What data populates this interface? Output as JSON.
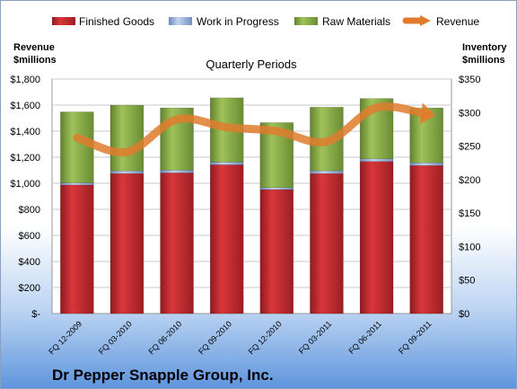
{
  "chart_data": {
    "type": "bar",
    "title": "Quarterly Periods",
    "company": "Dr Pepper Snapple Group, Inc.",
    "left_axis": {
      "label_line1": "Revenue",
      "label_line2": "$millions",
      "range": [
        0,
        1800
      ],
      "ticks": [
        "$-",
        "$200",
        "$400",
        "$600",
        "$800",
        "$1,000",
        "$1,200",
        "$1,400",
        "$1,600",
        "$1,800"
      ]
    },
    "right_axis": {
      "label_line1": "Inventory",
      "label_line2": "$millions",
      "range": [
        0,
        350
      ],
      "ticks": [
        "$0",
        "$50",
        "$100",
        "$150",
        "$200",
        "$250",
        "$300",
        "$350"
      ]
    },
    "categories": [
      "FQ 12-2009",
      "FQ 03-2010",
      "FQ 06-2010",
      "FQ 09-2010",
      "FQ 12-2010",
      "FQ 03-2011",
      "FQ 06-2011",
      "FQ 09-2011"
    ],
    "series": [
      {
        "name": "Finished Goods",
        "kind": "bar",
        "axis": "right",
        "color": "#c0272d",
        "values": [
          192,
          209,
          210,
          222,
          185,
          209,
          227,
          221
        ]
      },
      {
        "name": "Work in Progress",
        "kind": "bar",
        "axis": "right",
        "color": "#8fa9d6",
        "values": [
          3,
          4,
          4,
          4,
          3,
          4,
          4,
          4
        ]
      },
      {
        "name": "Raw Materials",
        "kind": "bar",
        "axis": "right",
        "color": "#8bad4b",
        "values": [
          106,
          98,
          93,
          96,
          97,
          95,
          90,
          82
        ]
      },
      {
        "name": "Revenue",
        "kind": "line",
        "axis": "left",
        "color": "#e07b2e",
        "values": [
          1350,
          1240,
          1490,
          1430,
          1400,
          1320,
          1580,
          1530
        ]
      }
    ],
    "grid": true,
    "legend": "top"
  }
}
